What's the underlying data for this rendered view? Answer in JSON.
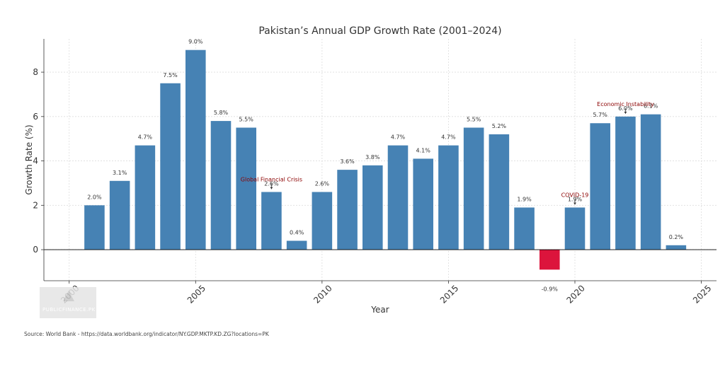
{
  "chart_data": {
    "type": "bar",
    "title": "Pakistan’s Annual GDP Growth Rate (2001–2024)",
    "xlabel": "Year",
    "ylabel": "Growth Rate (%)",
    "xlim": [
      1999,
      2025.6
    ],
    "ylim": [
      -1.4,
      9.5
    ],
    "x_ticks": [
      2000,
      2005,
      2010,
      2015,
      2020,
      2025
    ],
    "y_ticks": [
      0,
      2,
      4,
      6,
      8
    ],
    "grid": true,
    "categories": [
      2001,
      2002,
      2003,
      2004,
      2005,
      2006,
      2007,
      2008,
      2009,
      2010,
      2011,
      2012,
      2013,
      2014,
      2015,
      2016,
      2017,
      2018,
      2019,
      2020,
      2021,
      2022,
      2023,
      2024
    ],
    "values": [
      2.0,
      3.1,
      4.7,
      7.5,
      9.0,
      5.8,
      5.5,
      2.6,
      0.4,
      2.6,
      3.6,
      3.8,
      4.7,
      4.1,
      4.7,
      5.5,
      5.2,
      1.9,
      -0.9,
      1.9,
      5.7,
      6.0,
      6.1,
      0.2
    ],
    "labels": [
      "2.0%",
      "3.1%",
      "4.7%",
      "7.5%",
      "9.0%",
      "5.8%",
      "5.5%",
      "2.6%",
      "0.4%",
      "2.6%",
      "3.6%",
      "3.8%",
      "4.7%",
      "4.1%",
      "4.7%",
      "5.5%",
      "5.2%",
      "1.9%",
      "-0.9%",
      "1.9%",
      "5.7%",
      "6.0%",
      "6.1%",
      "0.2%"
    ],
    "positive_color": "#4682b4",
    "negative_color": "#dc143c",
    "annotations": [
      {
        "text": "Global Financial Crisis",
        "x": 2008,
        "y": 2.6
      },
      {
        "text": "COVID-19",
        "x": 2020,
        "y": 1.9
      },
      {
        "text": "Economic Instability",
        "x": 2022,
        "y": 6.0
      }
    ],
    "annotation_color": "#8b0000"
  },
  "source_text": "Source: World Bank - https://data.worldbank.org/indicator/NY.GDP.MKTP.KD.ZG?locations=PK",
  "watermark_text": "PUBLICFINANCE.PK"
}
